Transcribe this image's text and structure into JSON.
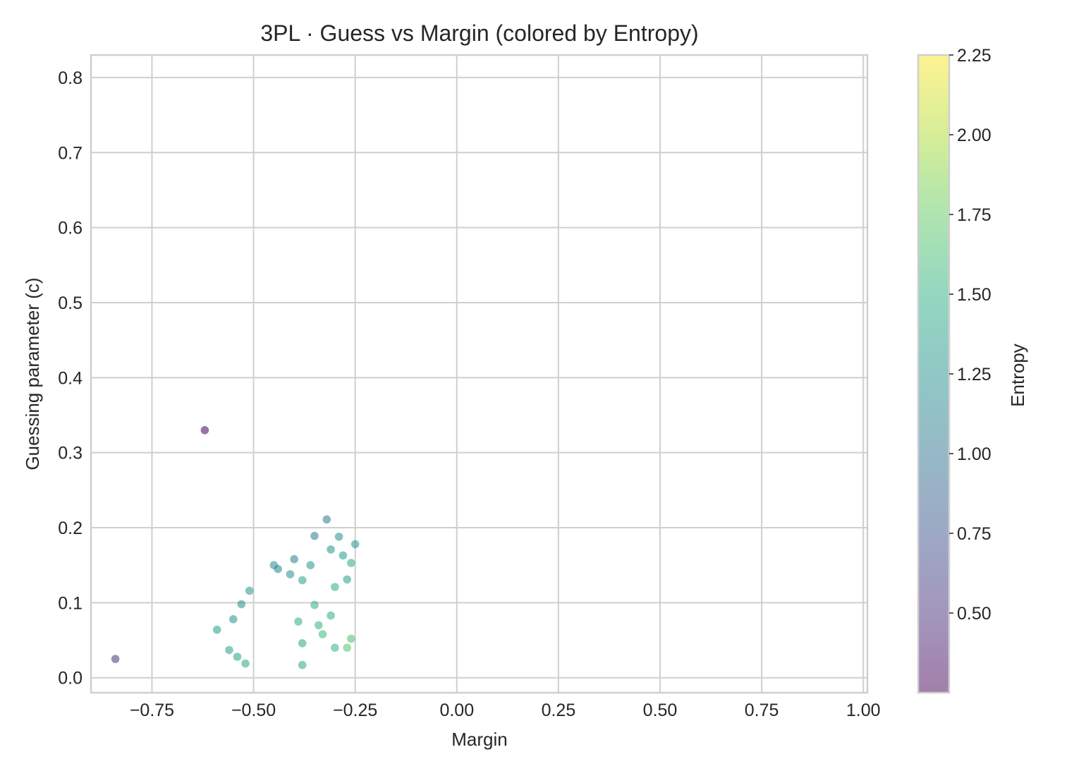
{
  "chart_data": {
    "type": "scatter",
    "title": "3PL · Guess vs Margin (colored by Entropy)",
    "xlabel": "Margin",
    "ylabel": "Guessing parameter (c)",
    "xlim": [
      -0.9,
      1.01
    ],
    "ylim": [
      -0.02,
      0.83
    ],
    "xticks": [
      -0.75,
      -0.5,
      -0.25,
      0.0,
      0.25,
      0.5,
      0.75,
      1.0
    ],
    "xtick_labels": [
      "−0.75",
      "−0.50",
      "−0.25",
      "0.00",
      "0.25",
      "0.50",
      "0.75",
      "1.00"
    ],
    "yticks": [
      0.0,
      0.1,
      0.2,
      0.3,
      0.4,
      0.5,
      0.6,
      0.7,
      0.8
    ],
    "ytick_labels": [
      "0.0",
      "0.1",
      "0.2",
      "0.3",
      "0.4",
      "0.5",
      "0.6",
      "0.7",
      "0.8"
    ],
    "grid": true,
    "colorbar": {
      "label": "Entropy",
      "colormap": "viridis",
      "range": [
        0.25,
        2.25
      ],
      "ticks": [
        0.5,
        0.75,
        1.0,
        1.25,
        1.5,
        1.75,
        2.0,
        2.25
      ],
      "tick_labels": [
        "0.50",
        "0.75",
        "1.00",
        "1.25",
        "1.50",
        "1.75",
        "2.00",
        "2.25"
      ]
    },
    "point_alpha": 0.55,
    "points": [
      [
        -0.84,
        0.025,
        0.55
      ],
      [
        -0.59,
        0.064,
        1.35
      ],
      [
        -0.56,
        0.037,
        1.4
      ],
      [
        -0.55,
        0.078,
        1.25
      ],
      [
        -0.54,
        0.028,
        1.4
      ],
      [
        -0.53,
        0.098,
        1.25
      ],
      [
        -0.52,
        0.019,
        1.45
      ],
      [
        -0.51,
        0.116,
        1.3
      ],
      [
        -0.45,
        0.15,
        1.2
      ],
      [
        -0.44,
        0.145,
        1.15
      ],
      [
        -0.41,
        0.138,
        1.25
      ],
      [
        -0.4,
        0.158,
        1.1
      ],
      [
        -0.39,
        0.075,
        1.5
      ],
      [
        -0.38,
        0.017,
        1.45
      ],
      [
        -0.38,
        0.046,
        1.45
      ],
      [
        -0.38,
        0.13,
        1.4
      ],
      [
        -0.36,
        0.15,
        1.3
      ],
      [
        -0.35,
        0.097,
        1.5
      ],
      [
        -0.35,
        0.189,
        1.1
      ],
      [
        -0.34,
        0.07,
        1.55
      ],
      [
        -0.33,
        0.058,
        1.6
      ],
      [
        -0.32,
        0.211,
        1.05
      ],
      [
        -0.31,
        0.083,
        1.5
      ],
      [
        -0.31,
        0.171,
        1.3
      ],
      [
        -0.3,
        0.04,
        1.55
      ],
      [
        -0.3,
        0.121,
        1.5
      ],
      [
        -0.29,
        0.188,
        1.25
      ],
      [
        -0.28,
        0.163,
        1.35
      ],
      [
        -0.27,
        0.131,
        1.4
      ],
      [
        -0.26,
        0.153,
        1.45
      ],
      [
        -0.25,
        0.178,
        1.3
      ],
      [
        -0.27,
        0.04,
        1.7
      ],
      [
        -0.26,
        0.052,
        1.65
      ],
      [
        -0.62,
        0.33,
        0.0
      ]
    ]
  }
}
